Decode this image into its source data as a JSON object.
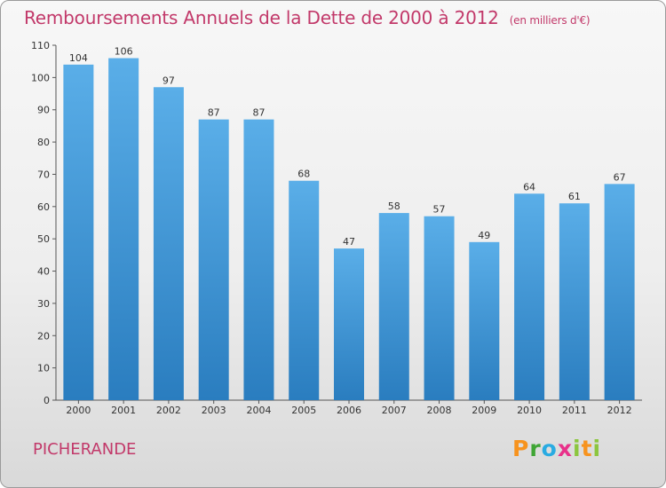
{
  "title": "Remboursements Annuels de la Dette de 2000 à 2012",
  "subtitle": "(en milliers d'€)",
  "location": "PICHERANDE",
  "brand": "Proxiti",
  "colors": {
    "title": "#c2396a",
    "bar_top": "#5aaee8",
    "bar_bottom": "#2a7dbf"
  },
  "chart_data": {
    "type": "bar",
    "title": "Remboursements Annuels de la Dette de 2000 à 2012",
    "subtitle": "(en milliers d'€)",
    "categories": [
      "2000",
      "2001",
      "2002",
      "2003",
      "2004",
      "2005",
      "2006",
      "2007",
      "2008",
      "2009",
      "2010",
      "2011",
      "2012"
    ],
    "values": [
      104,
      106,
      97,
      87,
      87,
      68,
      47,
      58,
      57,
      49,
      64,
      61,
      67
    ],
    "ylim": [
      0,
      110
    ],
    "yticks": [
      0,
      10,
      20,
      30,
      40,
      50,
      60,
      70,
      80,
      90,
      100,
      110
    ],
    "grid": false,
    "data_labels": true
  }
}
